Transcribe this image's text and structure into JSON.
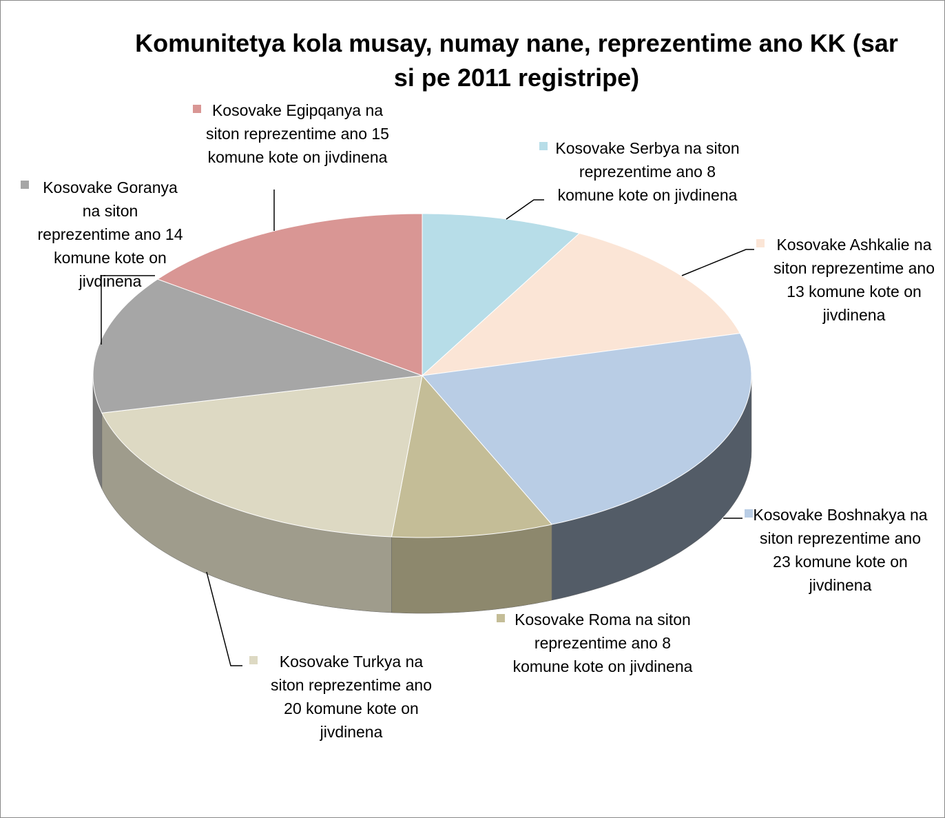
{
  "chart_data": {
    "type": "pie3d",
    "title": "Komunitetya kola musay, numay nane, reprezentime ano KK (sar si pe 2011 registripe)",
    "categories": [
      "Kosovake Serbya na siton reprezentime ano 8 komune kote on jivdinena",
      "Kosovake Ashkalie na siton reprezentime ano 13 komune kote on jivdinena",
      "Kosovake Boshnakya na siton reprezentime ano 23 komune kote on jivdinena",
      "Kosovake Roma na siton reprezentime ano 8 komune kote on jivdinena",
      "Kosovake Turkya na siton reprezentime ano 20 komune kote on jivdinena",
      "Kosovake Goranya na siton reprezentime ano 14 komune kote on jivdinena",
      "Kosovake Egipqanya na siton reprezentime ano 15 komune kote on jivdinena"
    ],
    "values": [
      8,
      13,
      23,
      8,
      20,
      14,
      15
    ],
    "colors": [
      "#b7dde8",
      "#fbe5d6",
      "#b9cde5",
      "#c4bd97",
      "#ddd9c3",
      "#a6a6a6",
      "#d99694"
    ]
  }
}
